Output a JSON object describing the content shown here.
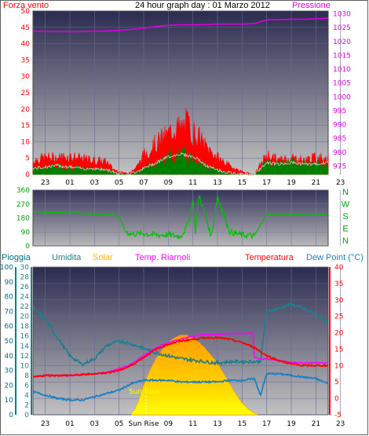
{
  "title": "24 hour graph day : 01 Marzo 2012",
  "colors": {
    "wind": "#ff0000",
    "gust": "#ff0000",
    "wind_avg": "#008000",
    "pressure": "#dd00dd",
    "direction": "#00c000",
    "humidity": "#1f7f8c",
    "solar": "#ffb000",
    "temp": "#ff0000",
    "indoor": "#ff00ff",
    "dew": "#1f7fbf",
    "rain": "#008080",
    "plot_top": "#2d2d52",
    "plot_bottom": "#bdbdbd"
  },
  "chart_data": [
    {
      "type": "area",
      "name": "wind-pressure",
      "left_axis_label": "Forza vento",
      "right_axis_label": "Pressione",
      "x_ticks": [
        "23",
        "01",
        "03",
        "05",
        "07",
        "09",
        "11",
        "13",
        "15",
        "17",
        "19",
        "21",
        "23"
      ],
      "left_ticks": [
        0,
        5,
        10,
        15,
        20,
        25,
        30,
        35,
        40,
        45,
        50
      ],
      "right_ticks": [
        975,
        980,
        985,
        990,
        995,
        1000,
        1005,
        1010,
        1015,
        1020,
        1025,
        1030
      ],
      "ylim_left": [
        0,
        50
      ],
      "ylim_right": [
        972,
        1031
      ],
      "gust_profile": {
        "x": [
          0,
          1,
          2,
          3,
          4,
          5,
          6,
          6.5,
          7,
          7.5,
          8,
          8.5,
          9,
          10,
          11,
          11.5,
          12,
          12.5,
          13,
          13.5,
          14,
          14.5,
          15,
          16,
          17,
          18,
          19,
          20,
          21,
          22,
          23,
          24
        ],
        "y": [
          5,
          6,
          6,
          6.5,
          5.5,
          5,
          4.5,
          2,
          1,
          0.5,
          1,
          3,
          7,
          11,
          14,
          17,
          16,
          18,
          15,
          13,
          10,
          8,
          6,
          3,
          1,
          0,
          7,
          5,
          6,
          5,
          6,
          6
        ]
      },
      "avg_profile": {
        "x": [
          0,
          1,
          2,
          3,
          4,
          5,
          6,
          6.5,
          7,
          7.5,
          8,
          9,
          10,
          11,
          12,
          13,
          13.5,
          14,
          15,
          16,
          17,
          18,
          19,
          20,
          21,
          22,
          23,
          24
        ],
        "y": [
          2,
          2.5,
          3,
          2.5,
          2,
          2,
          1.5,
          1,
          0.3,
          0.1,
          0.3,
          2,
          4,
          6,
          7,
          6,
          5,
          3,
          1.5,
          0.5,
          0,
          0,
          4,
          3.5,
          4,
          3.5,
          3.5,
          4
        ]
      },
      "pressure": {
        "x": [
          0,
          1,
          2,
          3,
          4,
          5,
          6,
          7,
          8,
          9,
          10,
          11,
          12,
          13,
          14,
          15,
          16,
          17,
          18,
          19,
          20,
          21,
          22,
          23,
          24
        ],
        "y": [
          1023.8,
          1023.6,
          1023.6,
          1023.5,
          1023.6,
          1023.7,
          1023.8,
          1024,
          1024.4,
          1024.8,
          1025.4,
          1025.8,
          1026,
          1026,
          1026.1,
          1026.3,
          1026.3,
          1026.3,
          1026.4,
          1027.8,
          1027.9,
          1028,
          1028,
          1028.2,
          1028.4
        ]
      }
    },
    {
      "type": "line",
      "name": "wind-direction",
      "left_ticks": [
        0,
        90,
        180,
        270,
        360
      ],
      "compass": [
        "N",
        "W",
        "S",
        "E",
        "N"
      ],
      "ylim": [
        0,
        360
      ],
      "x": [
        0,
        1,
        2,
        3,
        3.3,
        4,
        5,
        6,
        6.5,
        7,
        7.5,
        8,
        9,
        10,
        11,
        12,
        12.5,
        13,
        13.2,
        13.5,
        14,
        14.5,
        15,
        16,
        17,
        18,
        19,
        20,
        21,
        22,
        23,
        24
      ],
      "y": [
        223,
        215,
        218,
        212,
        222,
        210,
        205,
        203,
        203,
        190,
        95,
        75,
        80,
        70,
        72,
        60,
        120,
        300,
        80,
        330,
        200,
        60,
        320,
        90,
        70,
        65,
        205,
        205,
        205,
        205,
        205,
        205
      ]
    },
    {
      "type": "line",
      "name": "weather-multi",
      "series_labels": [
        "Pioggia",
        "Umidita",
        "Solar",
        "Temp. Riarnoli",
        "Temperatura",
        "Dew Point (°C)"
      ],
      "x_ticks": [
        "23",
        "01",
        "03",
        "05",
        "Sun Rise",
        "09",
        "11",
        "13",
        "15",
        "17",
        "19",
        "21",
        "23"
      ],
      "sun_rise_label": "Sun Rise",
      "rain_ticks": [
        0,
        10,
        20,
        30,
        40,
        50,
        60,
        70,
        80,
        90,
        100
      ],
      "hum_ticks": [
        0,
        2,
        4,
        6,
        8,
        10,
        12,
        14,
        16,
        18,
        20,
        22,
        24,
        26,
        28,
        30
      ],
      "temp_ticks": [
        -5,
        0,
        5,
        10,
        15,
        20,
        25,
        30,
        35,
        40
      ],
      "ylim_rain": [
        0,
        100
      ],
      "ylim_temp": [
        -5,
        40
      ],
      "humidity": {
        "x": [
          0,
          1,
          2,
          3,
          4,
          5,
          6,
          7,
          8,
          9,
          10,
          11,
          12,
          13,
          14,
          15,
          16,
          17,
          18,
          18.5,
          19,
          20,
          21,
          22,
          23,
          24
        ],
        "y": [
          72,
          65,
          52,
          40,
          34,
          38,
          47,
          50,
          48,
          45,
          42,
          40,
          38,
          37,
          36,
          35,
          36,
          36,
          36,
          36,
          70,
          72,
          75,
          72,
          68,
          62
        ]
      },
      "temperature": {
        "x": [
          0,
          1,
          2,
          3,
          4,
          5,
          6,
          7,
          8,
          9,
          10,
          11,
          12,
          13,
          14,
          15,
          16,
          17,
          18,
          19,
          20,
          21,
          22,
          23,
          24
        ],
        "y": [
          6.5,
          7,
          7,
          7,
          7.2,
          7.5,
          7.8,
          8.5,
          10,
          12.5,
          15,
          16.5,
          17.5,
          18,
          18.5,
          18.5,
          18,
          17,
          15.5,
          13,
          11.5,
          10.5,
          10,
          10,
          10
        ]
      },
      "indoor_temp": {
        "x": [
          0,
          1,
          2,
          3,
          4,
          5,
          6,
          7,
          8,
          9,
          10,
          11,
          12,
          13,
          14,
          15,
          16,
          17,
          17.9,
          18,
          18.5,
          19,
          20,
          21,
          22,
          23,
          24
        ],
        "y": [
          6.5,
          7,
          7,
          7,
          7.2,
          7.5,
          8,
          9,
          10.5,
          13,
          15.5,
          17,
          18,
          19,
          19.5,
          19.5,
          19.8,
          19.8,
          19.8,
          12.5,
          12,
          12,
          11.5,
          11,
          10.8,
          10.8,
          10.8
        ]
      },
      "dew_point": {
        "x": [
          0,
          1,
          2,
          3,
          4,
          5,
          6,
          7,
          8,
          9,
          10,
          11,
          12,
          13,
          14,
          15,
          16,
          17,
          18,
          18.5,
          19,
          20,
          21,
          22,
          23,
          24
        ],
        "y": [
          2,
          1,
          0,
          -0.5,
          -0.5,
          0.5,
          1.5,
          2.5,
          4.5,
          5.5,
          5.5,
          5.5,
          5,
          5,
          5,
          5,
          5.5,
          5.5,
          6,
          1,
          7.5,
          7.5,
          7,
          6.5,
          6,
          4.5
        ]
      },
      "solar": {
        "x": [
          8,
          8.3,
          8.6,
          9,
          9.5,
          10,
          10.5,
          11,
          11.5,
          12,
          12.5,
          13,
          13.5,
          14,
          14.5,
          15,
          15.5,
          16,
          16.5,
          17,
          17.5,
          18,
          18.3
        ],
        "y": [
          1,
          4,
          10,
          20,
          30,
          38,
          44,
          49,
          52,
          54,
          54,
          52,
          49,
          45,
          40,
          35,
          28,
          21,
          14,
          8,
          4,
          1,
          0
        ]
      }
    }
  ]
}
